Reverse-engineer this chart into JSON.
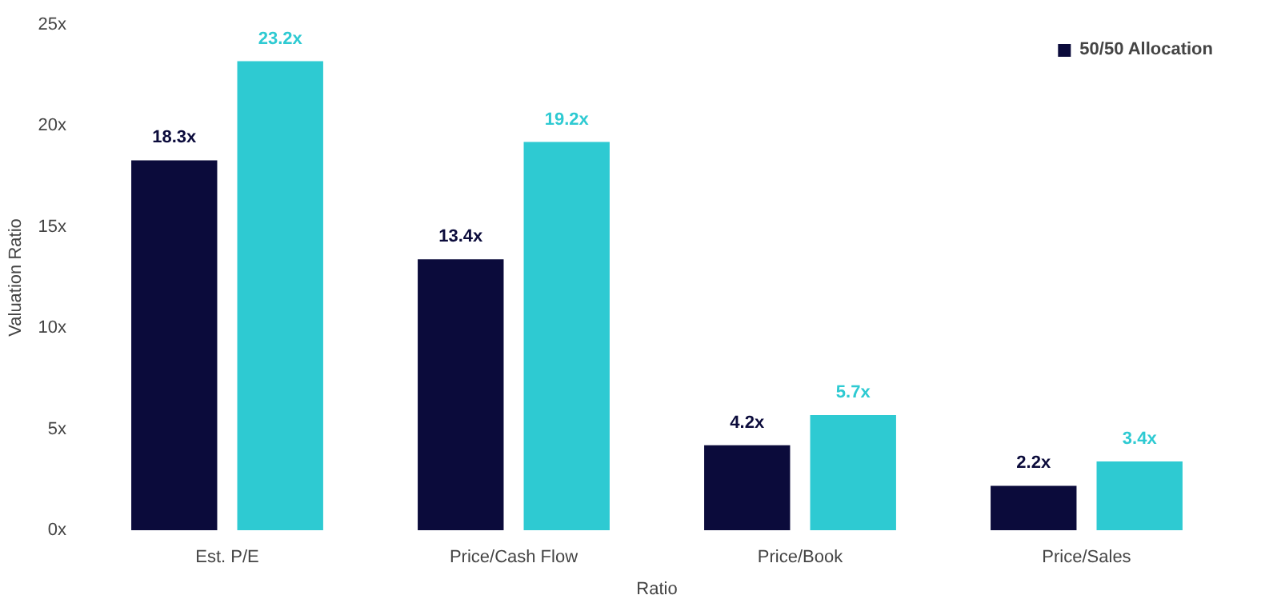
{
  "chart_data": {
    "type": "bar",
    "xlabel": "Ratio",
    "ylabel": "Valuation Ratio",
    "categories": [
      "Est. P/E",
      "Price/Cash Flow",
      "Price/Book",
      "Price/Sales"
    ],
    "series": [
      {
        "name": "50/50 Allocation",
        "color": "#0b0b3b",
        "values": [
          18.3,
          13.4,
          4.2,
          2.2
        ],
        "value_labels": [
          "18.3x",
          "13.4x",
          "4.2x",
          "2.2x"
        ]
      },
      {
        "color": "#2ecad2",
        "values": [
          23.2,
          19.2,
          5.7,
          3.4
        ],
        "value_labels": [
          "23.2x",
          "19.2x",
          "5.7x",
          "3.4x"
        ]
      }
    ],
    "ylim": [
      0,
      25
    ],
    "yticks": [
      {
        "value": 0,
        "label": "0x"
      },
      {
        "value": 5,
        "label": "5x"
      },
      {
        "value": 10,
        "label": "10x"
      },
      {
        "value": 15,
        "label": "15x"
      },
      {
        "value": 20,
        "label": "20x"
      },
      {
        "value": 25,
        "label": "25x"
      }
    ],
    "grid": false,
    "legend": "top right"
  }
}
